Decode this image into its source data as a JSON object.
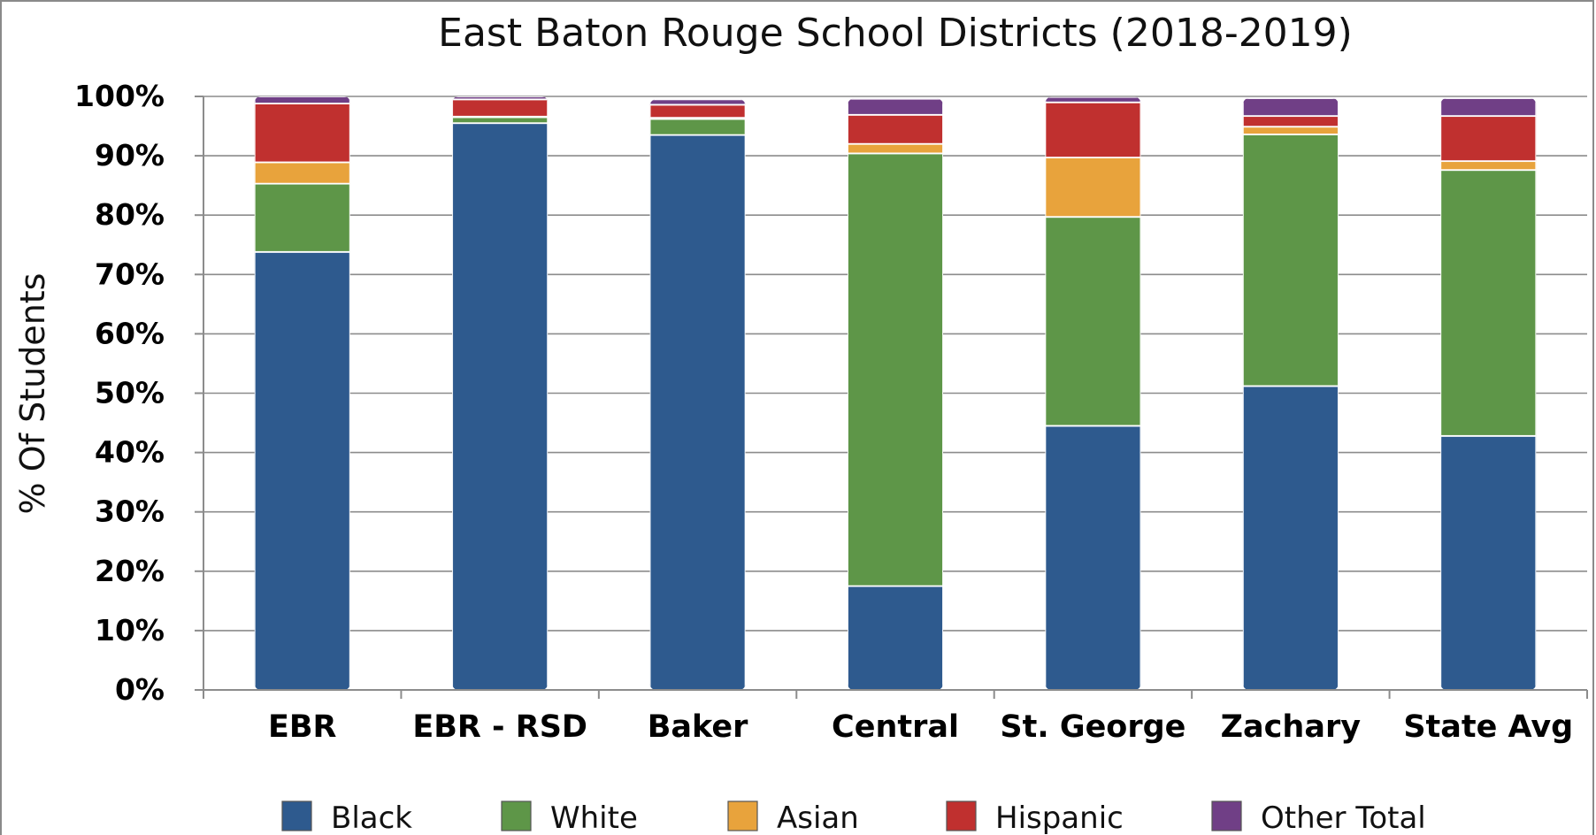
{
  "chart_data": {
    "type": "bar",
    "stacked": true,
    "title": "East Baton Rouge School Districts (2018-2019)",
    "ylabel": "% Of Students",
    "xlabel": "",
    "ylim": [
      0,
      100
    ],
    "yticks": [
      "0%",
      "10%",
      "20%",
      "30%",
      "40%",
      "50%",
      "60%",
      "70%",
      "80%",
      "90%",
      "100%"
    ],
    "grid": true,
    "legend_position": "bottom",
    "categories": [
      "EBR",
      "EBR - RSD",
      "Baker",
      "Central",
      "St. George",
      "Zachary",
      "State Avg"
    ],
    "series": [
      {
        "name": "Black",
        "color": "#2e5a8e",
        "values": [
          73.8,
          95.5,
          93.5,
          17.5,
          44.5,
          51.2,
          42.8
        ]
      },
      {
        "name": "White",
        "color": "#5e9648",
        "values": [
          11.5,
          1.0,
          2.7,
          72.9,
          35.2,
          42.4,
          44.8
        ]
      },
      {
        "name": "Asian",
        "color": "#e8a33c",
        "values": [
          3.6,
          0.1,
          0.2,
          1.6,
          10.0,
          1.3,
          1.5
        ]
      },
      {
        "name": "Hispanic",
        "color": "#c0302f",
        "values": [
          9.9,
          2.9,
          2.2,
          4.9,
          9.3,
          1.8,
          7.6
        ]
      },
      {
        "name": "Other Total",
        "color": "#703f86",
        "values": [
          1.2,
          0.5,
          0.9,
          2.7,
          0.9,
          3.0,
          3.0
        ]
      }
    ]
  }
}
